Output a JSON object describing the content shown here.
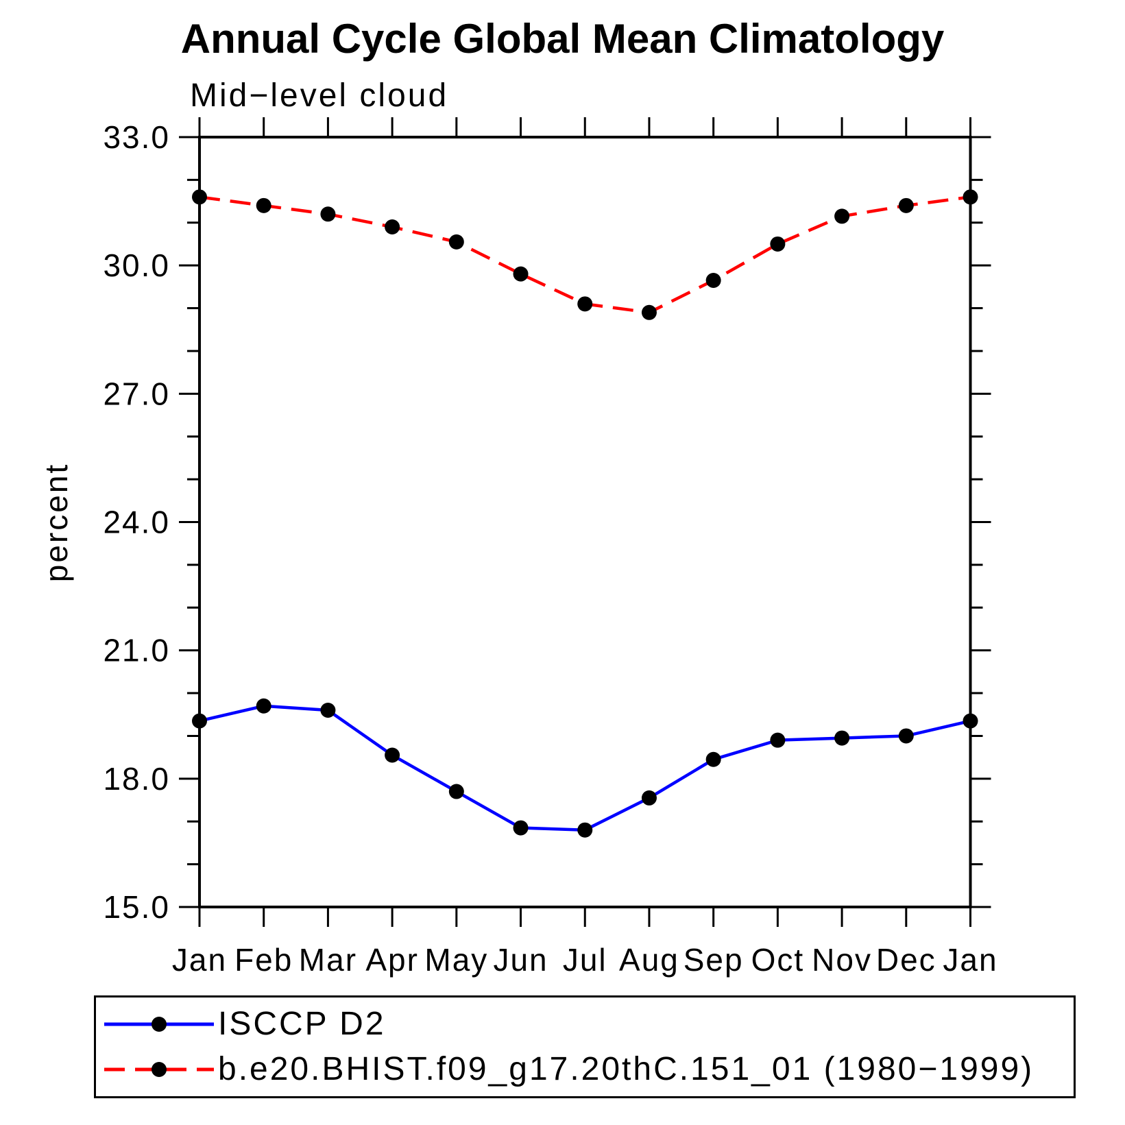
{
  "page": {
    "background": "#ffffff",
    "frame_color": "#000000",
    "marker_color": "#000000"
  },
  "chart_data": {
    "type": "line",
    "title": "Annual Cycle Global Mean Climatology",
    "subtitle": "Mid−level cloud",
    "ylabel": "percent",
    "xlabel": "",
    "ylim": [
      15.0,
      33.0
    ],
    "ytick_major_step": 3.0,
    "ytick_minor_step": 1.0,
    "ytick_labels": [
      "15.0",
      "18.0",
      "21.0",
      "24.0",
      "27.0",
      "30.0",
      "33.0"
    ],
    "grid": false,
    "legend_position": "bottom",
    "categories": [
      "Jan",
      "Feb",
      "Mar",
      "Apr",
      "May",
      "Jun",
      "Jul",
      "Aug",
      "Sep",
      "Oct",
      "Nov",
      "Dec",
      "Jan"
    ],
    "series": [
      {
        "name": "ISCCP D2",
        "color": "#0000ff",
        "line_style": "solid",
        "dash": "",
        "marker": "circle",
        "marker_color": "#000000",
        "values": [
          19.35,
          19.7,
          19.6,
          18.55,
          17.7,
          16.85,
          16.8,
          17.55,
          18.45,
          18.9,
          18.95,
          19.0,
          19.35
        ]
      },
      {
        "name": "b.e20.BHIST.f09_g17.20thC.151_01 (1980−1999)",
        "color": "#ff0000",
        "line_style": "dashed",
        "dash": "30 15",
        "marker": "circle",
        "marker_color": "#000000",
        "values": [
          31.6,
          31.4,
          31.2,
          30.9,
          30.55,
          29.8,
          29.1,
          28.9,
          29.65,
          30.5,
          31.15,
          31.4,
          31.6
        ]
      }
    ]
  }
}
